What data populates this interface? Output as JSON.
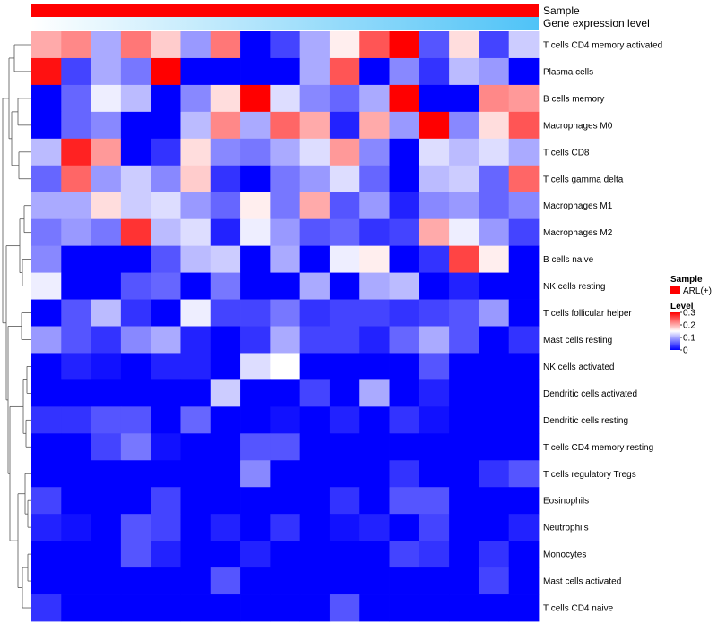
{
  "chart_data": {
    "type": "heatmap",
    "title": "",
    "annotations": {
      "sample_label": "Sample",
      "gene_expression_label": "Gene expression level"
    },
    "legend": {
      "sample_title": "Sample",
      "sample_entries": [
        {
          "label": "ARL(+)",
          "color": "#ff0000"
        }
      ],
      "level_title": "Level",
      "level_ticks": [
        "0.3",
        "0.2",
        "0.1",
        "0"
      ],
      "level_tick_values": [
        0.3,
        0.2,
        0.1,
        0
      ],
      "range": [
        0,
        0.3
      ],
      "colors": {
        "low": "#0000ff",
        "mid": "#ffffff",
        "high": "#ff0000"
      }
    },
    "rows": [
      "T cells CD4 memory activated",
      "Plasma cells",
      "B cells memory",
      "Macrophages M0",
      "T cells CD8",
      "T cells gamma delta",
      "Macrophages M1",
      "Macrophages M2",
      "B cells naive",
      "NK cells resting",
      "T cells follicular helper",
      "Mast cells resting",
      "NK cells activated",
      "Dendritic cells activated",
      "Dendritic cells resting",
      "T cells CD4 memory resting",
      "T cells regulatory  Tregs",
      "Eosinophils",
      "Neutrophils",
      "Monocytes",
      "Mast cells activated",
      "T cells CD4 naive"
    ],
    "gene_expression_gradient": {
      "from": "#ffffff",
      "to": "#4fc3f7"
    },
    "values": [
      [
        0.2,
        0.22,
        0.1,
        0.23,
        0.18,
        0.09,
        0.23,
        0.0,
        0.04,
        0.1,
        0.16,
        0.25,
        0.3,
        0.05,
        0.17,
        0.04,
        0.12
      ],
      [
        0.29,
        0.04,
        0.1,
        0.07,
        0.3,
        0.0,
        0.0,
        0.0,
        0.0,
        0.1,
        0.25,
        0.0,
        0.08,
        0.03,
        0.11,
        0.09,
        0.0
      ],
      [
        0.0,
        0.06,
        0.14,
        0.11,
        0.0,
        0.08,
        0.17,
        0.3,
        0.13,
        0.08,
        0.06,
        0.1,
        0.3,
        0.0,
        0.0,
        0.22,
        0.21
      ],
      [
        0.0,
        0.06,
        0.08,
        0.0,
        0.0,
        0.11,
        0.22,
        0.1,
        0.24,
        0.2,
        0.02,
        0.2,
        0.09,
        0.3,
        0.08,
        0.17,
        0.25
      ],
      [
        0.11,
        0.28,
        0.21,
        0.0,
        0.03,
        0.17,
        0.08,
        0.07,
        0.1,
        0.13,
        0.21,
        0.08,
        0.0,
        0.13,
        0.11,
        0.13,
        0.1
      ],
      [
        0.06,
        0.24,
        0.09,
        0.12,
        0.08,
        0.18,
        0.03,
        0.0,
        0.07,
        0.09,
        0.13,
        0.06,
        0.0,
        0.11,
        0.12,
        0.06,
        0.24
      ],
      [
        0.1,
        0.1,
        0.17,
        0.12,
        0.13,
        0.09,
        0.06,
        0.16,
        0.07,
        0.2,
        0.05,
        0.09,
        0.02,
        0.08,
        0.09,
        0.06,
        0.08
      ],
      [
        0.07,
        0.09,
        0.07,
        0.27,
        0.11,
        0.13,
        0.02,
        0.14,
        0.09,
        0.05,
        0.06,
        0.03,
        0.04,
        0.2,
        0.14,
        0.09,
        0.04
      ],
      [
        0.08,
        0.0,
        0.0,
        0.0,
        0.05,
        0.11,
        0.12,
        0.0,
        0.1,
        0.0,
        0.14,
        0.16,
        0.0,
        0.03,
        0.26,
        0.16,
        0.0
      ],
      [
        0.14,
        0.0,
        0.0,
        0.05,
        0.06,
        0.0,
        0.07,
        0.0,
        0.0,
        0.1,
        0.0,
        0.1,
        0.11,
        0.0,
        0.02,
        0.0,
        0.0
      ],
      [
        0.0,
        0.05,
        0.11,
        0.03,
        0.0,
        0.14,
        0.04,
        0.04,
        0.07,
        0.03,
        0.04,
        0.04,
        0.03,
        0.04,
        0.05,
        0.09,
        0.0
      ],
      [
        0.09,
        0.05,
        0.03,
        0.08,
        0.1,
        0.02,
        0.0,
        0.03,
        0.1,
        0.04,
        0.04,
        0.02,
        0.06,
        0.1,
        0.05,
        0.0,
        0.03
      ],
      [
        0.0,
        0.02,
        0.01,
        0.0,
        0.02,
        0.02,
        0.0,
        0.13,
        0.15,
        0.0,
        0.0,
        0.0,
        0.0,
        0.05,
        0.0,
        0.0,
        0.0
      ],
      [
        0.0,
        0.0,
        0.0,
        0.0,
        0.0,
        0.0,
        0.12,
        0.0,
        0.0,
        0.04,
        0.0,
        0.1,
        0.0,
        0.02,
        0.0,
        0.0,
        0.0
      ],
      [
        0.03,
        0.03,
        0.05,
        0.05,
        0.0,
        0.06,
        0.0,
        0.0,
        0.01,
        0.0,
        0.02,
        0.0,
        0.03,
        0.01,
        0.0,
        0.0,
        0.0
      ],
      [
        0.0,
        0.0,
        0.04,
        0.07,
        0.01,
        0.0,
        0.0,
        0.05,
        0.05,
        0.0,
        0.0,
        0.0,
        0.0,
        0.0,
        0.0,
        0.0,
        0.0
      ],
      [
        0.0,
        0.0,
        0.0,
        0.0,
        0.0,
        0.0,
        0.0,
        0.08,
        0.0,
        0.0,
        0.0,
        0.0,
        0.03,
        0.0,
        0.0,
        0.03,
        0.05
      ],
      [
        0.04,
        0.0,
        0.0,
        0.0,
        0.04,
        0.0,
        0.0,
        0.0,
        0.0,
        0.0,
        0.03,
        0.0,
        0.05,
        0.05,
        0.0,
        0.0,
        0.0
      ],
      [
        0.02,
        0.01,
        0.0,
        0.05,
        0.04,
        0.0,
        0.02,
        0.0,
        0.03,
        0.0,
        0.01,
        0.02,
        0.0,
        0.04,
        0.0,
        0.0,
        0.02
      ],
      [
        0.0,
        0.0,
        0.0,
        0.05,
        0.02,
        0.0,
        0.0,
        0.02,
        0.0,
        0.0,
        0.0,
        0.0,
        0.04,
        0.03,
        0.0,
        0.03,
        0.0
      ],
      [
        0.0,
        0.0,
        0.0,
        0.0,
        0.0,
        0.0,
        0.05,
        0.0,
        0.0,
        0.0,
        0.0,
        0.0,
        0.0,
        0.0,
        0.0,
        0.04,
        0.0
      ],
      [
        0.03,
        0.0,
        0.0,
        0.0,
        0.0,
        0.0,
        0.0,
        0.0,
        0.0,
        0.0,
        0.05,
        0.0,
        0.0,
        0.0,
        0.0,
        0.0,
        0.0
      ]
    ]
  }
}
